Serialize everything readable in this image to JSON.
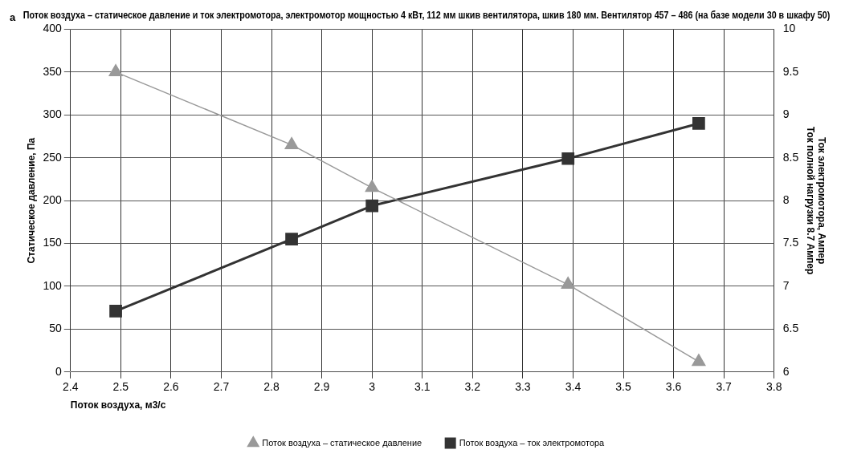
{
  "chart_data": {
    "type": "line",
    "title": "Поток воздуха – статическое давление и ток электромотора, электромотор мощностью 4 кВт, 112 мм шкив вентилятора, шкив 180 мм. Вентилятор 457 – 486 (на базе модели 30 в шкафу 50)",
    "xlabel": "Поток воздуха, м3/с",
    "ylabel": "Статическое давление, Па",
    "y2label": "Ток электромотора, Ампер\nТок полной нагрузки 8.7 Ампер",
    "annotations": [
      "а"
    ],
    "x": [
      2.49,
      2.84,
      3.0,
      3.39,
      3.65
    ],
    "series": [
      {
        "name": "Поток воздуха – статическое давление",
        "color": "#999999",
        "values": [
          350,
          265,
          215,
          102,
          12
        ],
        "marker": "triangle"
      },
      {
        "name": "Поток воздуха – ток электромотора",
        "color": "#333333",
        "values": [
          6.71,
          7.55,
          7.94,
          8.49,
          8.9
        ],
        "axis": "y2",
        "marker": "square"
      }
    ],
    "xlim": [
      2.4,
      3.8
    ],
    "xticks": [
      2.4,
      2.5,
      2.6,
      2.7,
      2.8,
      2.9,
      3,
      3.1,
      3.2,
      3.3,
      3.4,
      3.5,
      3.6,
      3.7,
      3.8
    ],
    "ylim": [
      0,
      400
    ],
    "yticks": [
      0,
      50,
      100,
      150,
      200,
      250,
      300,
      350,
      400
    ],
    "y2lim": [
      6,
      10
    ],
    "y2ticks": [
      6,
      6.5,
      7,
      7.5,
      8,
      8.5,
      9,
      9.5,
      10
    ],
    "grid": true,
    "legend": "bottom",
    "line_style": "solid"
  }
}
